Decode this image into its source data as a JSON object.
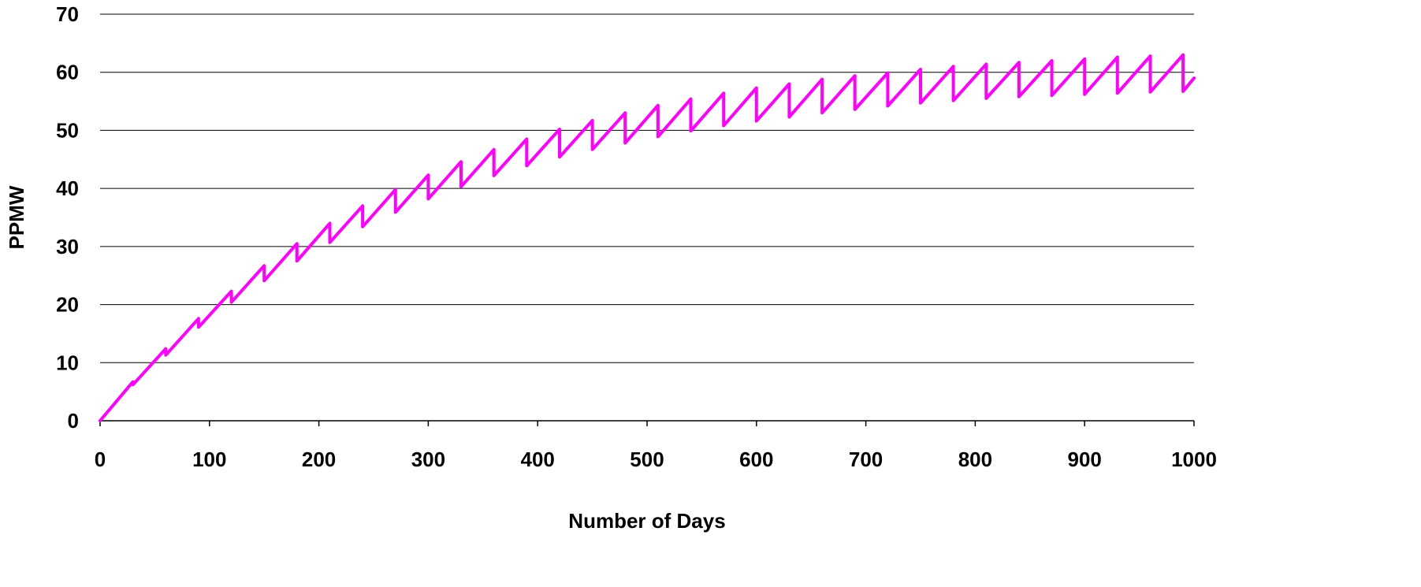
{
  "chart_data": {
    "type": "line",
    "title": "",
    "xlabel": "Number of Days",
    "ylabel": "PPMW",
    "xlim": [
      0,
      1000
    ],
    "ylim": [
      0,
      70
    ],
    "x_ticks": [
      "0",
      "100",
      "200",
      "300",
      "400",
      "500",
      "600",
      "700",
      "800",
      "900",
      "1000"
    ],
    "y_ticks": [
      "0",
      "10",
      "20",
      "30",
      "40",
      "50",
      "60",
      "70"
    ],
    "grid": "horizontal",
    "legend": "none",
    "series": [
      {
        "color": "#ff00ff",
        "x": [
          0,
          30,
          30,
          30,
          60,
          60,
          60,
          90,
          90,
          90,
          120,
          120,
          120,
          150,
          150,
          150,
          180,
          180,
          180,
          210,
          210,
          210,
          240,
          240,
          240,
          270,
          270,
          270,
          300,
          300,
          300,
          330,
          330,
          330,
          360,
          360,
          360,
          390,
          390,
          390,
          420,
          420,
          420,
          450,
          450,
          450,
          480,
          480,
          480,
          510,
          510,
          510,
          540,
          540,
          540,
          570,
          570,
          570,
          600,
          600,
          600,
          630,
          630,
          630,
          660,
          660,
          660,
          690,
          690,
          690,
          720,
          720,
          720,
          750,
          750,
          750,
          780,
          780,
          780,
          810,
          810,
          810,
          840,
          840,
          840,
          870,
          870,
          870,
          900,
          900,
          900,
          930,
          930,
          930,
          960,
          960,
          960,
          990,
          990,
          990,
          1000
        ],
        "y": [
          0,
          6.7,
          6.2,
          6.2,
          12.4,
          11.3,
          11.3,
          17.6,
          16.1,
          16.1,
          22.3,
          20.4,
          20.4,
          26.7,
          24.1,
          24.1,
          30.5,
          27.5,
          27.5,
          34.0,
          30.7,
          30.7,
          37.0,
          33.4,
          33.4,
          39.8,
          35.9,
          35.9,
          42.3,
          38.2,
          38.2,
          44.6,
          40.3,
          40.3,
          46.7,
          42.2,
          42.2,
          48.5,
          43.9,
          43.9,
          50.2,
          45.4,
          45.4,
          51.7,
          46.7,
          46.7,
          53.0,
          47.8,
          47.8,
          54.3,
          48.9,
          48.9,
          55.4,
          49.9,
          49.9,
          56.4,
          50.8,
          50.8,
          57.3,
          51.6,
          51.6,
          58.0,
          52.3,
          52.3,
          58.8,
          53.0,
          53.0,
          59.4,
          53.6,
          53.6,
          59.9,
          54.2,
          54.2,
          60.5,
          54.7,
          54.7,
          61.0,
          55.1,
          55.1,
          61.4,
          55.5,
          55.5,
          61.7,
          55.8,
          55.8,
          62.0,
          56.0,
          56.0,
          62.3,
          56.2,
          56.2,
          62.6,
          56.4,
          56.4,
          62.8,
          56.6,
          56.6,
          63.0,
          56.7,
          56.7,
          59.0
        ]
      }
    ]
  }
}
